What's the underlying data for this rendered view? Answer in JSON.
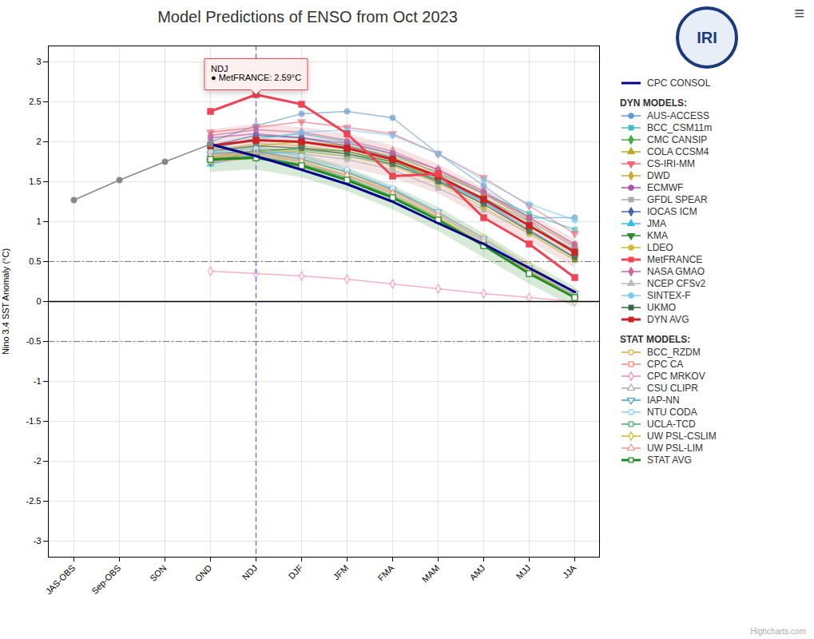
{
  "chart_data": {
    "type": "line",
    "title": "Model Predictions of ENSO from Oct 2023",
    "categories": [
      "JAS-OBS",
      "Sep-OBS",
      "SON",
      "OND",
      "NDJ",
      "DJF",
      "JFM",
      "FMA",
      "MAM",
      "AMJ",
      "MJJ",
      "JJA"
    ],
    "ylabel": "Nino 3.4 SST Anomaly (°C)",
    "ylim": [
      -3.2,
      3.2
    ],
    "yticks": [
      -3,
      -2.5,
      -2,
      -1.5,
      -1,
      -0.5,
      0,
      0.5,
      1,
      1.5,
      2,
      2.5,
      3
    ],
    "grid": true,
    "legend": "right",
    "series_groups": [
      {
        "series": [
          {
            "color": "#888888",
            "marker": "circle",
            "line_style": "solid",
            "values": [
              1.27,
              1.52,
              1.75,
              1.97,
              null,
              null,
              null,
              null,
              null,
              null,
              null,
              null
            ]
          },
          {
            "name": "CPC CONSOL",
            "color": "#00008B",
            "marker": "none",
            "line_style": "thick",
            "values": [
              null,
              null,
              null,
              1.97,
              1.82,
              1.65,
              1.47,
              1.25,
              0.98,
              0.72,
              0.42,
              0.12
            ]
          }
        ]
      },
      {
        "title": "DYN MODELS:",
        "series": [
          {
            "name": "AUS-ACCESS",
            "color": "#6699CC",
            "marker": "circle",
            "line_style": "solid",
            "values": [
              null,
              null,
              null,
              2.0,
              2.2,
              2.35,
              2.38,
              2.3,
              1.85,
              1.45,
              1.05,
              1.05
            ]
          },
          {
            "name": "BCC_CSM11m",
            "color": "#44BBBB",
            "marker": "square",
            "line_style": "solid",
            "values": [
              null,
              null,
              null,
              1.9,
              2.05,
              2.1,
              2.0,
              1.85,
              1.6,
              1.35,
              1.1,
              0.9
            ]
          },
          {
            "name": "CMC CANSIP",
            "color": "#44AA44",
            "marker": "diamond",
            "line_style": "solid",
            "values": [
              null,
              null,
              null,
              1.75,
              1.9,
              1.9,
              1.85,
              1.75,
              1.55,
              1.3,
              1.0,
              0.6
            ]
          },
          {
            "name": "COLA CCSM4",
            "color": "#BBAA22",
            "marker": "triangle-up",
            "line_style": "solid",
            "values": [
              null,
              null,
              null,
              1.78,
              1.95,
              2.0,
              1.95,
              1.82,
              1.62,
              1.35,
              1.05,
              0.7
            ]
          },
          {
            "name": "CS-IRI-MM",
            "color": "#EE6677",
            "marker": "triangle-down",
            "line_style": "solid",
            "values": [
              null,
              null,
              null,
              2.12,
              2.18,
              2.25,
              2.18,
              2.1,
              1.85,
              1.55,
              1.2,
              0.85
            ]
          },
          {
            "name": "DWD",
            "color": "#CCAA33",
            "marker": "diamond",
            "line_style": "solid",
            "values": [
              null,
              null,
              null,
              1.88,
              1.98,
              1.95,
              1.88,
              1.75,
              1.55,
              1.28,
              0.95,
              0.6
            ]
          },
          {
            "name": "ECMWF",
            "color": "#AA55AA",
            "marker": "circle",
            "line_style": "solid",
            "values": [
              null,
              null,
              null,
              2.05,
              2.1,
              2.05,
              1.98,
              1.85,
              1.65,
              1.38,
              1.05,
              0.72
            ]
          },
          {
            "name": "GFDL SPEAR",
            "color": "#AAAAAA",
            "marker": "square",
            "line_style": "solid",
            "values": [
              null,
              null,
              null,
              1.82,
              1.88,
              1.85,
              1.78,
              1.65,
              1.42,
              1.15,
              0.85,
              0.52
            ]
          },
          {
            "name": "IOCAS ICM",
            "color": "#4466AA",
            "marker": "diamond",
            "line_style": "solid",
            "values": [
              null,
              null,
              null,
              1.95,
              2.08,
              2.05,
              1.95,
              1.8,
              1.55,
              1.25,
              0.9,
              0.55
            ]
          },
          {
            "name": "JMA",
            "color": "#33BBEE",
            "marker": "triangle-up",
            "line_style": "solid",
            "values": [
              null,
              null,
              null,
              1.72,
              1.85,
              1.88,
              1.82,
              1.72,
              1.52,
              1.25,
              0.95,
              0.65
            ]
          },
          {
            "name": "KMA",
            "color": "#338833",
            "marker": "triangle-down",
            "line_style": "solid",
            "values": [
              null,
              null,
              null,
              1.75,
              1.88,
              1.92,
              1.88,
              1.75,
              1.52,
              1.22,
              0.88,
              0.55
            ]
          },
          {
            "name": "LDEO",
            "color": "#CCBB33",
            "marker": "circle",
            "line_style": "solid",
            "values": [
              null,
              null,
              null,
              1.78,
              1.88,
              1.88,
              1.82,
              1.7,
              1.48,
              1.18,
              0.85,
              0.52
            ]
          },
          {
            "name": "MetFRANCE",
            "color": "#EE4455",
            "marker": "square",
            "line_style": "thick",
            "values": [
              null,
              null,
              null,
              2.38,
              2.59,
              2.47,
              2.1,
              1.57,
              1.6,
              1.05,
              0.72,
              0.3
            ]
          },
          {
            "name": "NASA GMAO",
            "color": "#CC6699",
            "marker": "diamond",
            "line_style": "solid",
            "values": [
              null,
              null,
              null,
              2.08,
              2.15,
              2.12,
              2.02,
              1.88,
              1.65,
              1.35,
              1.02,
              0.68
            ]
          },
          {
            "name": "NCEP CFSv2",
            "color": "#BBBBBB",
            "marker": "triangle-up",
            "line_style": "solid",
            "values": [
              null,
              null,
              null,
              1.85,
              1.95,
              1.92,
              1.85,
              1.72,
              1.5,
              1.22,
              0.9,
              0.58
            ]
          },
          {
            "name": "SINTEX-F",
            "color": "#77CCEE",
            "marker": "circle",
            "line_style": "solid",
            "values": [
              null,
              null,
              null,
              1.92,
              2.02,
              2.12,
              2.15,
              2.08,
              1.85,
              1.52,
              1.22,
              1.02
            ]
          },
          {
            "name": "UKMO",
            "color": "#336644",
            "marker": "square",
            "line_style": "solid",
            "values": [
              null,
              null,
              null,
              1.88,
              1.95,
              1.92,
              1.85,
              1.72,
              1.5,
              1.22,
              0.88,
              0.55
            ]
          },
          {
            "name": "DYN AVG",
            "color": "#CC2222",
            "marker": "square",
            "line_style": "thick",
            "values": [
              null,
              null,
              null,
              1.95,
              2.02,
              2.0,
              1.92,
              1.78,
              1.57,
              1.28,
              0.95,
              0.62
            ]
          }
        ]
      },
      {
        "title": "STAT MODELS:",
        "series": [
          {
            "name": "BCC_RZDM",
            "color": "#DDAA33",
            "marker": "circle-open",
            "line_style": "solid",
            "values": [
              null,
              null,
              null,
              1.85,
              1.88,
              1.78,
              1.62,
              1.4,
              1.12,
              0.8,
              0.45,
              0.12
            ]
          },
          {
            "name": "CPC CA",
            "color": "#EE8877",
            "marker": "square-open",
            "line_style": "solid",
            "values": [
              null,
              null,
              null,
              1.75,
              1.8,
              1.72,
              1.58,
              1.38,
              1.1,
              0.75,
              0.38,
              0.05
            ]
          },
          {
            "name": "CPC MRKOV",
            "color": "#EE88AA",
            "marker": "diamond-open",
            "line_style": "solid",
            "values": [
              null,
              null,
              null,
              0.38,
              0.35,
              0.32,
              0.28,
              0.22,
              0.16,
              0.1,
              0.05,
              0.0
            ]
          },
          {
            "name": "CSU CLIPR",
            "color": "#AAAAAA",
            "marker": "triangle-up-open",
            "line_style": "solid",
            "values": [
              null,
              null,
              null,
              1.8,
              1.82,
              1.72,
              1.55,
              1.32,
              1.05,
              0.72,
              0.38,
              0.08
            ]
          },
          {
            "name": "IAP-NN",
            "color": "#4499CC",
            "marker": "triangle-down-open",
            "line_style": "solid",
            "values": [
              null,
              null,
              null,
              1.85,
              1.88,
              1.78,
              1.62,
              1.4,
              1.12,
              0.78,
              0.42,
              0.1
            ]
          },
          {
            "name": "NTU CODA",
            "color": "#88CCEE",
            "marker": "circle-open",
            "line_style": "solid",
            "values": [
              null,
              null,
              null,
              1.88,
              1.92,
              1.82,
              1.65,
              1.42,
              1.12,
              0.78,
              0.42,
              0.1
            ]
          },
          {
            "name": "UCLA-TCD",
            "color": "#44AA66",
            "marker": "square-open",
            "line_style": "solid",
            "values": [
              null,
              null,
              null,
              1.78,
              1.82,
              1.72,
              1.55,
              1.32,
              1.05,
              0.72,
              0.38,
              0.08
            ]
          },
          {
            "name": "UW PSL-CSLIM",
            "color": "#CCBB22",
            "marker": "diamond-open",
            "line_style": "solid",
            "values": [
              null,
              null,
              null,
              1.8,
              1.85,
              1.75,
              1.58,
              1.35,
              1.05,
              0.72,
              0.38,
              0.05
            ]
          },
          {
            "name": "UW PSL-LIM",
            "color": "#EE9988",
            "marker": "triangle-up-open",
            "line_style": "solid",
            "values": [
              null,
              null,
              null,
              1.82,
              1.85,
              1.75,
              1.58,
              1.35,
              1.08,
              0.75,
              0.4,
              0.08
            ]
          },
          {
            "name": "STAT AVG",
            "color": "#228822",
            "marker": "square-open",
            "line_style": "thick",
            "values": [
              null,
              null,
              null,
              1.78,
              1.8,
              1.7,
              1.52,
              1.3,
              1.02,
              0.7,
              0.35,
              0.05
            ]
          }
        ]
      }
    ],
    "bands": [
      {
        "color": "#CC6666",
        "lower": [
          null,
          null,
          null,
          1.72,
          1.78,
          1.75,
          1.68,
          1.55,
          1.35,
          1.05,
          0.75,
          0.42
        ],
        "upper": [
          null,
          null,
          null,
          2.15,
          2.22,
          2.18,
          2.1,
          1.95,
          1.72,
          1.42,
          1.1,
          0.78
        ]
      },
      {
        "color": "#228822",
        "lower": [
          null,
          null,
          null,
          1.62,
          1.65,
          1.55,
          1.38,
          1.15,
          0.88,
          0.55,
          0.22,
          -0.08
        ],
        "upper": [
          null,
          null,
          null,
          1.92,
          1.95,
          1.85,
          1.68,
          1.45,
          1.18,
          0.85,
          0.5,
          0.18
        ]
      }
    ],
    "hlines": [
      {
        "value": 0,
        "color": "black",
        "line_style": "solid"
      },
      {
        "value": 0.5,
        "color": "#444444",
        "line_style": "dashdot"
      },
      {
        "value": -0.5,
        "color": "#444444",
        "line_style": "dashdot"
      }
    ],
    "vlines": [
      {
        "x": "NDJ",
        "color": "#7777DD",
        "line_style": "dashed"
      }
    ],
    "annotation": {
      "text": "NDJ\n● MetFRANCE: 2.59°C",
      "x": "NDJ",
      "y": 2.59,
      "color": "#EE4455"
    },
    "logo_text": "IRI",
    "menu_symbol": "≡",
    "credit": "Highcharts.com"
  }
}
